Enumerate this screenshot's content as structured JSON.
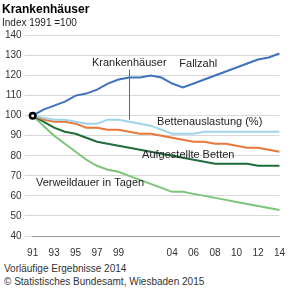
{
  "chart_data": {
    "type": "line",
    "title": "Krankenhäuser",
    "subtitle": "Index 1991 =100",
    "categories": [
      "91",
      null,
      "93",
      null,
      "95",
      null,
      "97",
      null,
      "99",
      null,
      null,
      null,
      null,
      "04",
      null,
      "06",
      null,
      "08",
      null,
      "10",
      null,
      "12",
      null,
      "14"
    ],
    "series": [
      {
        "name": "Fallzahl",
        "color": "#3f72c0",
        "values": [
          100,
          103,
          105,
          107,
          110,
          111,
          113,
          116,
          118,
          119,
          119,
          120,
          119,
          116,
          114,
          116,
          118,
          120,
          122,
          124,
          126,
          128,
          129,
          131
        ]
      },
      {
        "name": "Bettenauslastung (%)",
        "color": "#9fd3ea",
        "values": [
          100,
          99,
          98,
          98,
          97,
          96,
          96,
          98,
          98,
          97,
          96,
          95,
          93,
          91,
          91,
          91,
          92,
          92,
          92,
          92,
          92,
          92,
          92,
          92
        ]
      },
      {
        "name": "Krankenhäuser",
        "color": "#e8773a",
        "values": [
          100,
          98,
          97,
          97,
          96,
          94,
          94,
          93,
          93,
          92,
          91,
          91,
          90,
          89,
          88,
          87,
          87,
          86,
          86,
          85,
          84,
          84,
          83,
          82
        ]
      },
      {
        "name": "Aufgestellte Betten",
        "color": "#1f6b3a",
        "values": [
          100,
          97,
          94,
          92,
          91,
          89,
          87,
          86,
          85,
          84,
          83,
          82,
          81,
          80,
          79,
          78,
          77,
          76,
          76,
          76,
          76,
          75,
          75,
          75
        ]
      },
      {
        "name": "Verweildauer in Tagen",
        "color": "#7cc47a",
        "values": [
          100,
          95,
          90,
          86,
          82,
          78,
          75,
          73,
          72,
          70,
          68,
          66,
          64,
          62,
          62,
          61,
          60,
          59,
          58,
          57,
          56,
          55,
          54,
          53
        ]
      }
    ],
    "ylim": [
      40,
      140
    ],
    "yticks": [
      40,
      50,
      60,
      70,
      80,
      90,
      100,
      110,
      120,
      130,
      140
    ],
    "grid": true,
    "legend": "none",
    "footnote": "Vorläufige Ergebnisse 2014",
    "source": "© Statistisches Bundesamt, Wiesbaden 2015"
  }
}
